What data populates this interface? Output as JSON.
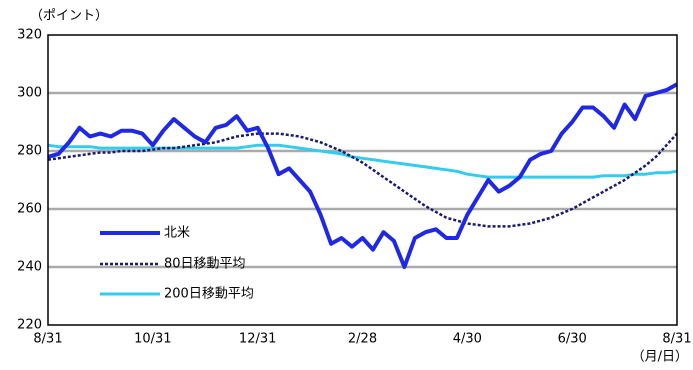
{
  "chart_data": {
    "type": "line",
    "y_label": "（ポイント）",
    "x_label": "（月/日）",
    "categories": [
      "8/31",
      null,
      null,
      null,
      null,
      null,
      null,
      null,
      null,
      null,
      "10/31",
      null,
      null,
      null,
      null,
      null,
      null,
      null,
      null,
      null,
      "12/31",
      null,
      null,
      null,
      null,
      null,
      null,
      null,
      null,
      null,
      "2/28",
      null,
      null,
      null,
      null,
      null,
      null,
      null,
      null,
      null,
      "4/30",
      null,
      null,
      null,
      null,
      null,
      null,
      null,
      null,
      null,
      "6/30",
      null,
      null,
      null,
      null,
      null,
      null,
      null,
      null,
      null,
      "8/31"
    ],
    "ylim": [
      220,
      320
    ],
    "yticks": [
      220,
      240,
      260,
      280,
      300,
      320
    ],
    "grid": true,
    "legend": "lower-left",
    "series": [
      {
        "name": "北米",
        "color": "#1f28e6",
        "style": "solid",
        "values": [
          278,
          279,
          283,
          288,
          285,
          286,
          285,
          287,
          287,
          286,
          282,
          287,
          291,
          288,
          285,
          283,
          288,
          289,
          292,
          287,
          288,
          281,
          272,
          274,
          270,
          266,
          258,
          248,
          250,
          247,
          250,
          246,
          252,
          249,
          240,
          250,
          252,
          253,
          250,
          250,
          258,
          264,
          270,
          266,
          268,
          271,
          277,
          279,
          280,
          286,
          290,
          295,
          295,
          292,
          288,
          296,
          291,
          299,
          300,
          301,
          303
        ]
      },
      {
        "name": "80日移動平均",
        "color": "#1a1a6e",
        "style": "dashed",
        "values": [
          277,
          277.5,
          278,
          278.5,
          279,
          279.5,
          279.5,
          280,
          280,
          280,
          280.5,
          281,
          281,
          281.5,
          282,
          282.5,
          283,
          284,
          285,
          285.5,
          286,
          286,
          286,
          285.5,
          285,
          284,
          283,
          281.5,
          280,
          278,
          276,
          273.5,
          271,
          268.5,
          266,
          263.5,
          261,
          259,
          257,
          256,
          255,
          254.5,
          254,
          254,
          254,
          254.5,
          255,
          256,
          257,
          258.5,
          260,
          262,
          264,
          266,
          268,
          270,
          272.5,
          275,
          278,
          282,
          286
        ]
      },
      {
        "name": "200日移動平均",
        "color": "#33ccee",
        "style": "solid",
        "values": [
          282,
          281.5,
          281.5,
          281.5,
          281.5,
          281,
          281,
          281,
          281,
          281,
          281,
          281,
          281,
          281,
          281,
          281,
          281,
          281,
          281,
          281.5,
          282,
          282,
          282,
          281.5,
          281,
          280.5,
          280,
          279.5,
          279,
          278,
          277.5,
          277,
          276.5,
          276,
          275.5,
          275,
          274.5,
          274,
          273.5,
          273,
          272,
          271.5,
          271,
          271,
          271,
          271,
          271,
          271,
          271,
          271,
          271,
          271,
          271,
          271.5,
          271.5,
          271.5,
          272,
          272,
          272.5,
          272.5,
          273
        ]
      }
    ]
  }
}
